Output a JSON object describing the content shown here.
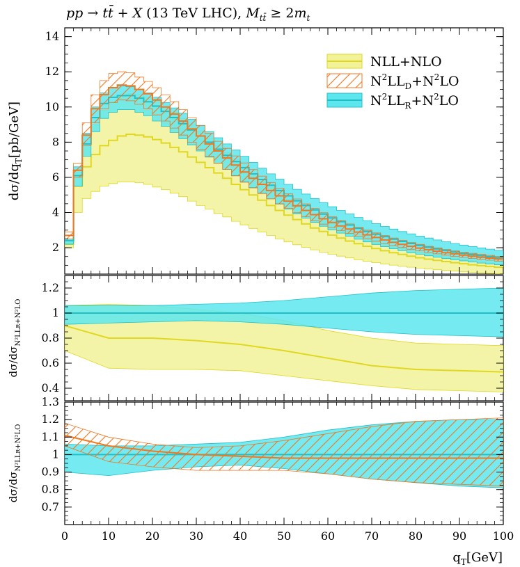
{
  "chart_data": [
    {
      "panel": "main",
      "type": "line",
      "title": "pp → tt̄ + X (13 TeV LHC), M_tt̄ ≥ 2m_t",
      "ylabel": "dσ/dq_T [pb/GeV]",
      "xlabel": "",
      "ylim": [
        0.5,
        14.5
      ],
      "xlim": [
        0,
        100
      ],
      "yticks": [
        2,
        4,
        6,
        8,
        10,
        12,
        14
      ],
      "x": [
        0,
        2,
        4,
        6,
        8,
        10,
        12,
        14,
        16,
        18,
        20,
        22,
        24,
        26,
        28,
        30,
        32,
        34,
        36,
        38,
        40,
        42,
        44,
        46,
        48,
        50,
        52,
        54,
        56,
        58,
        60,
        62,
        64,
        66,
        68,
        70,
        72,
        74,
        76,
        78,
        80,
        82,
        84,
        86,
        88,
        90,
        92,
        94,
        96,
        98,
        100
      ],
      "series": [
        {
          "name": "NLL+NLO",
          "color": "#e8e84a",
          "fill": "#f2f29a",
          "central": [
            2.2,
            5.5,
            6.6,
            7.3,
            7.8,
            8.1,
            8.35,
            8.45,
            8.4,
            8.3,
            8.15,
            7.95,
            7.7,
            7.45,
            7.15,
            6.85,
            6.55,
            6.25,
            5.95,
            5.6,
            5.3,
            5.0,
            4.7,
            4.4,
            4.12,
            3.85,
            3.6,
            3.35,
            3.12,
            2.92,
            2.72,
            2.55,
            2.38,
            2.23,
            2.08,
            1.95,
            1.83,
            1.72,
            1.62,
            1.52,
            1.43,
            1.35,
            1.28,
            1.21,
            1.15,
            1.09,
            1.03,
            0.98,
            0.93,
            0.89,
            0.85
          ],
          "lower": [
            2.0,
            4.0,
            4.8,
            5.2,
            5.5,
            5.65,
            5.75,
            5.75,
            5.7,
            5.6,
            5.45,
            5.3,
            5.1,
            4.9,
            4.65,
            4.4,
            4.2,
            3.95,
            3.75,
            3.5,
            3.3,
            3.1,
            2.9,
            2.7,
            2.5,
            2.33,
            2.17,
            2.02,
            1.88,
            1.75,
            1.63,
            1.52,
            1.42,
            1.32,
            1.23,
            1.15,
            1.08,
            1.01,
            0.95,
            0.89,
            0.84,
            0.79,
            0.75,
            0.71,
            0.67,
            0.63,
            0.6,
            0.57,
            0.54,
            0.52,
            0.5
          ],
          "upper": [
            2.5,
            6.3,
            7.9,
            9.0,
            9.8,
            10.3,
            10.6,
            10.75,
            10.7,
            10.55,
            10.3,
            10.0,
            9.7,
            9.35,
            9.0,
            8.6,
            8.2,
            7.8,
            7.4,
            7.0,
            6.6,
            6.2,
            5.8,
            5.45,
            5.1,
            4.75,
            4.45,
            4.15,
            3.87,
            3.6,
            3.37,
            3.15,
            2.94,
            2.75,
            2.57,
            2.41,
            2.26,
            2.12,
            1.99,
            1.87,
            1.76,
            1.66,
            1.57,
            1.48,
            1.4,
            1.33,
            1.26,
            1.19,
            1.13,
            1.08,
            1.03
          ]
        },
        {
          "name": "N²LL_D+N²LO",
          "color": "#f07820",
          "fill": "hatch",
          "central": [
            2.7,
            6.4,
            8.4,
            9.9,
            10.7,
            11.1,
            11.25,
            11.2,
            11.0,
            10.75,
            10.4,
            10.0,
            9.6,
            9.2,
            8.75,
            8.35,
            7.9,
            7.5,
            7.1,
            6.7,
            6.3,
            5.95,
            5.6,
            5.25,
            4.95,
            4.65,
            4.38,
            4.12,
            3.88,
            3.65,
            3.44,
            3.24,
            3.06,
            2.89,
            2.73,
            2.58,
            2.44,
            2.31,
            2.19,
            2.08,
            1.98,
            1.89,
            1.8,
            1.72,
            1.65,
            1.58,
            1.52,
            1.46,
            1.41,
            1.36,
            1.31
          ],
          "lower": [
            2.5,
            6.0,
            7.8,
            9.1,
            9.9,
            10.25,
            10.4,
            10.35,
            10.15,
            9.9,
            9.55,
            9.2,
            8.8,
            8.4,
            8.0,
            7.6,
            7.2,
            6.8,
            6.45,
            6.08,
            5.72,
            5.4,
            5.08,
            4.78,
            4.5,
            4.24,
            3.99,
            3.76,
            3.54,
            3.34,
            3.15,
            2.97,
            2.81,
            2.65,
            2.51,
            2.37,
            2.24,
            2.12,
            2.01,
            1.91,
            1.82,
            1.73,
            1.65,
            1.58,
            1.51,
            1.45,
            1.39,
            1.34,
            1.29,
            1.24,
            1.2
          ],
          "upper": [
            2.9,
            6.8,
            9.1,
            10.7,
            11.5,
            11.9,
            12.0,
            11.95,
            11.7,
            11.45,
            11.1,
            10.7,
            10.3,
            9.85,
            9.4,
            8.95,
            8.5,
            8.05,
            7.65,
            7.22,
            6.82,
            6.44,
            6.07,
            5.71,
            5.38,
            5.06,
            4.77,
            4.49,
            4.23,
            3.99,
            3.76,
            3.55,
            3.35,
            3.17,
            3.0,
            2.84,
            2.69,
            2.55,
            2.42,
            2.3,
            2.19,
            2.08,
            1.99,
            1.9,
            1.82,
            1.75,
            1.68,
            1.62,
            1.56,
            1.5,
            1.45
          ]
        },
        {
          "name": "N²LL_R+N²LO",
          "color": "#20c0c8",
          "fill": "#5ee6ee",
          "central": [
            2.4,
            6.1,
            7.9,
            9.4,
            10.2,
            10.55,
            10.65,
            10.65,
            10.5,
            10.3,
            10.05,
            9.75,
            9.4,
            9.05,
            8.7,
            8.35,
            8.0,
            7.6,
            7.25,
            6.9,
            6.55,
            6.2,
            5.88,
            5.55,
            5.25,
            4.95,
            4.67,
            4.4,
            4.15,
            3.91,
            3.69,
            3.48,
            3.29,
            3.1,
            2.93,
            2.77,
            2.63,
            2.49,
            2.36,
            2.24,
            2.13,
            2.03,
            1.93,
            1.84,
            1.76,
            1.68,
            1.61,
            1.55,
            1.49,
            1.43,
            1.38
          ],
          "lower": [
            2.2,
            5.5,
            7.2,
            8.6,
            9.35,
            9.7,
            9.85,
            9.85,
            9.7,
            9.5,
            9.2,
            8.9,
            8.55,
            8.2,
            7.85,
            7.5,
            7.15,
            6.8,
            6.45,
            6.1,
            5.75,
            5.42,
            5.1,
            4.78,
            4.48,
            4.2,
            3.93,
            3.68,
            3.44,
            3.22,
            3.02,
            2.83,
            2.65,
            2.48,
            2.33,
            2.19,
            2.06,
            1.94,
            1.83,
            1.72,
            1.63,
            1.54,
            1.46,
            1.38,
            1.31,
            1.25,
            1.19,
            1.13,
            1.08,
            1.03,
            0.99
          ],
          "upper": [
            2.5,
            6.6,
            8.5,
            10.0,
            10.8,
            11.1,
            11.2,
            11.15,
            11.0,
            10.8,
            10.55,
            10.25,
            9.95,
            9.65,
            9.3,
            8.95,
            8.6,
            8.25,
            7.9,
            7.55,
            7.2,
            6.85,
            6.52,
            6.2,
            5.9,
            5.6,
            5.32,
            5.05,
            4.8,
            4.56,
            4.33,
            4.12,
            3.92,
            3.72,
            3.54,
            3.37,
            3.21,
            3.06,
            2.92,
            2.79,
            2.66,
            2.55,
            2.44,
            2.34,
            2.24,
            2.15,
            2.07,
            1.99,
            1.92,
            1.85,
            1.78
          ]
        }
      ],
      "legend": "top-right"
    },
    {
      "panel": "ratio1",
      "type": "line",
      "ylabel": "dσ/dσ_N²LL_R+N²LO",
      "ylim": [
        0.3,
        1.3
      ],
      "yticks": [
        0.4,
        0.6,
        0.8,
        1,
        1.2
      ],
      "x": [
        0,
        10,
        20,
        30,
        40,
        50,
        60,
        70,
        80,
        90,
        100
      ],
      "series": [
        {
          "name": "NLL+NLO",
          "central": [
            0.9,
            0.8,
            0.8,
            0.78,
            0.75,
            0.7,
            0.64,
            0.58,
            0.55,
            0.54,
            0.53
          ],
          "lower": [
            0.7,
            0.56,
            0.55,
            0.55,
            0.54,
            0.5,
            0.46,
            0.42,
            0.39,
            0.38,
            0.37
          ],
          "upper": [
            1.06,
            1.07,
            1.06,
            1.03,
            1.0,
            0.94,
            0.86,
            0.8,
            0.76,
            0.75,
            0.74
          ]
        },
        {
          "name": "N²LL_R+N²LO",
          "central": [
            1,
            1,
            1,
            1,
            1,
            1,
            1,
            1,
            1,
            1,
            1
          ],
          "lower": [
            0.91,
            0.92,
            0.93,
            0.94,
            0.93,
            0.91,
            0.88,
            0.85,
            0.83,
            0.82,
            0.81
          ],
          "upper": [
            1.06,
            1.06,
            1.06,
            1.07,
            1.08,
            1.1,
            1.13,
            1.16,
            1.18,
            1.19,
            1.2
          ]
        }
      ]
    },
    {
      "panel": "ratio2",
      "type": "line",
      "ylabel": "dσ/dσ_N²LL_R+N²LO",
      "ylim": [
        0.6,
        1.3
      ],
      "yticks": [
        0.7,
        0.8,
        0.9,
        1,
        1.1,
        1.2,
        1.3
      ],
      "x": [
        0,
        10,
        20,
        30,
        40,
        50,
        60,
        70,
        80,
        90,
        100
      ],
      "series": [
        {
          "name": "N²LL_D+N²LO",
          "central": [
            1.11,
            1.05,
            1.02,
            1.0,
            0.99,
            0.98,
            0.98,
            0.98,
            0.98,
            0.98,
            0.98
          ],
          "lower": [
            1.05,
            0.96,
            0.93,
            0.91,
            0.91,
            0.91,
            0.89,
            0.86,
            0.84,
            0.83,
            0.82
          ],
          "upper": [
            1.18,
            1.1,
            1.06,
            1.04,
            1.05,
            1.08,
            1.12,
            1.16,
            1.19,
            1.2,
            1.21
          ]
        },
        {
          "name": "N²LL_R+N²LO",
          "central": [
            1,
            1,
            1,
            1,
            1,
            1,
            1,
            1,
            1,
            1,
            1
          ],
          "lower": [
            0.9,
            0.88,
            0.91,
            0.93,
            0.94,
            0.92,
            0.89,
            0.86,
            0.84,
            0.82,
            0.81
          ],
          "upper": [
            1.06,
            1.05,
            1.05,
            1.06,
            1.07,
            1.1,
            1.14,
            1.17,
            1.19,
            1.2,
            1.2
          ]
        }
      ]
    }
  ],
  "xaxis": {
    "label": "q_T [GeV]",
    "ticks": [
      0,
      10,
      20,
      30,
      40,
      50,
      60,
      70,
      80,
      90,
      100
    ]
  },
  "legend_labels": [
    "NLL+NLO",
    "N²LL_D+N²LO",
    "N²LL_R+N²LO"
  ],
  "colors": {
    "nll_fill": "#f2f29a",
    "nll_line": "#e0d820",
    "nnll_d": "#f07820",
    "nnll_r_fill": "#5ee6ee",
    "nnll_r_line": "#20c0c8"
  }
}
